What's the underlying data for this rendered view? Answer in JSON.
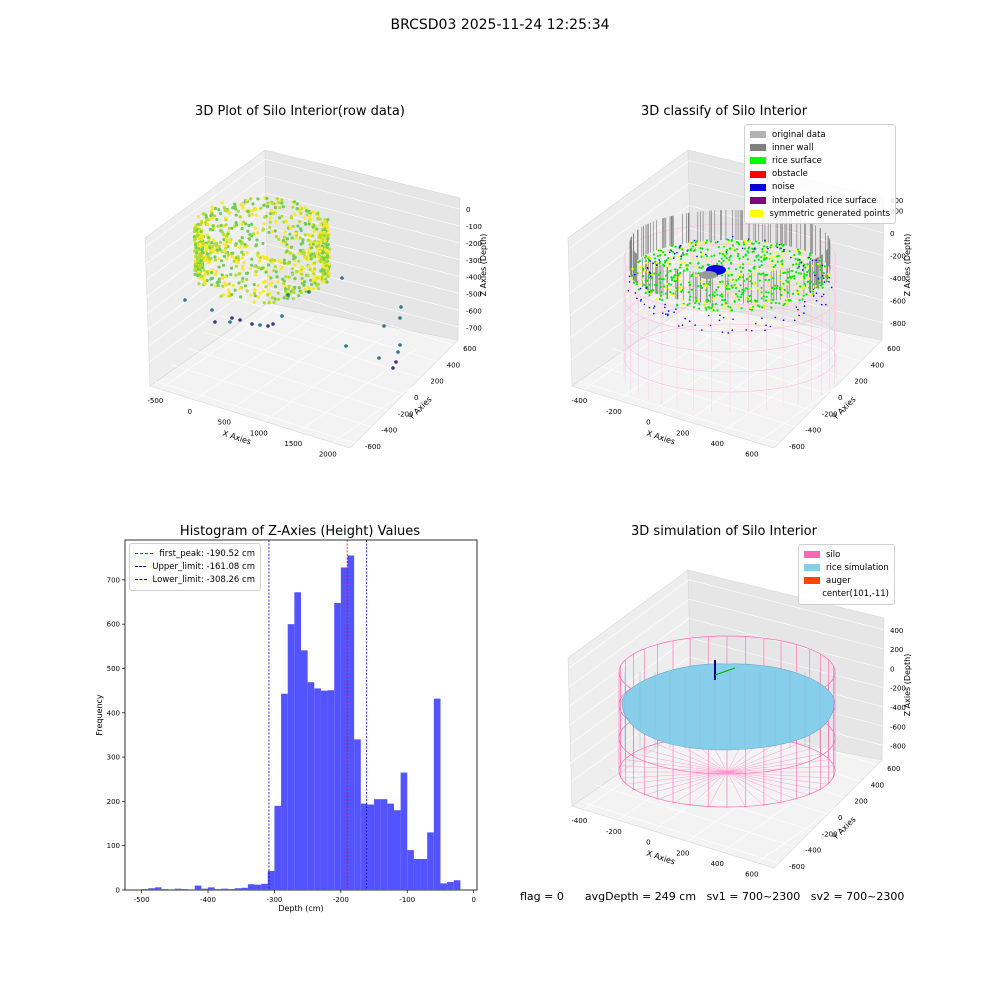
{
  "suptitle": "BRCSD03 2025-11-24 12:25:34",
  "plots": {
    "raw": {
      "title": "3D Plot of Silo Interior(row data)",
      "xlabel": "X Axies",
      "ylabel": "Y Axies",
      "zlabel": "Z Axies (Depth)",
      "xticks": [
        "-500",
        "0",
        "500",
        "1000",
        "1500",
        "2000"
      ],
      "yticks": [
        "-600",
        "-400",
        "-200",
        "0",
        "200",
        "400",
        "600"
      ],
      "zticks": [
        "0",
        "-100",
        "-200",
        "-300",
        "-400",
        "-500",
        "-600",
        "-700"
      ]
    },
    "classify": {
      "title": "3D classify of Silo Interior",
      "xlabel": "X Axies",
      "ylabel": "Y Axies",
      "zlabel": "Z Axies (Depth)",
      "xticks": [
        "-400",
        "-200",
        "0",
        "200",
        "400",
        "600"
      ],
      "yticks": [
        "-600",
        "-400",
        "-200",
        "0",
        "200",
        "400",
        "600"
      ],
      "zticks": [
        "200",
        "0",
        "-200",
        "-400",
        "-600",
        "-800"
      ],
      "ztop": "400",
      "legend": [
        {
          "label": "original data",
          "color": "#b3b3b3"
        },
        {
          "label": "inner wall",
          "color": "#808080"
        },
        {
          "label": "rice surface",
          "color": "#00ff00"
        },
        {
          "label": "obstacle",
          "color": "#ff0000"
        },
        {
          "label": "noise",
          "color": "#0000dd"
        },
        {
          "label": "interpolated rice surface",
          "color": "#800080"
        },
        {
          "label": "symmetric generated points",
          "color": "#ffff00"
        }
      ]
    },
    "simulation": {
      "title": "3D simulation of Silo Interior",
      "xlabel": "X Axies",
      "ylabel": "Y Axies",
      "zlabel": "Z Axies (Depth)",
      "xticks": [
        "-400",
        "-200",
        "0",
        "200",
        "400",
        "600"
      ],
      "yticks": [
        "-600",
        "-400",
        "-200",
        "0",
        "200",
        "400",
        "600"
      ],
      "zticks": [
        "400",
        "200",
        "0",
        "-200",
        "-400",
        "-600",
        "-800"
      ],
      "legend": [
        {
          "label": "silo",
          "color": "#ff69b4"
        },
        {
          "label": "rice simulation",
          "color": "#87ceeb"
        },
        {
          "label": "auger",
          "color": "#ff4500"
        },
        {
          "label": "center(101,-11)",
          "color": ""
        }
      ]
    }
  },
  "chart_data": {
    "type": "bar",
    "title": "Histogram of Z-Axies (Height) Values",
    "xlabel": "Depth (cm)",
    "ylabel": "Frequency",
    "xlim": [
      -525,
      5
    ],
    "ylim": [
      0,
      790
    ],
    "bin_width": 10,
    "bin_left_edges": [
      -500,
      -490,
      -480,
      -470,
      -460,
      -450,
      -440,
      -430,
      -420,
      -410,
      -400,
      -390,
      -380,
      -370,
      -360,
      -350,
      -340,
      -330,
      -320,
      -310,
      -300,
      -290,
      -280,
      -270,
      -260,
      -250,
      -240,
      -230,
      -220,
      -210,
      -200,
      -190,
      -180,
      -170,
      -160,
      -150,
      -140,
      -130,
      -120,
      -110,
      -100,
      -90,
      -80,
      -70,
      -60,
      -50,
      -40,
      -30,
      -20
    ],
    "values": [
      2,
      4,
      6,
      2,
      0,
      3,
      2,
      0,
      10,
      3,
      6,
      2,
      3,
      2,
      4,
      5,
      13,
      12,
      14,
      43,
      190,
      443,
      600,
      672,
      541,
      469,
      455,
      450,
      451,
      648,
      728,
      755,
      340,
      195,
      193,
      205,
      205,
      195,
      180,
      265,
      90,
      70,
      70,
      130,
      432,
      15,
      18,
      22,
      0
    ],
    "xticks": [
      -500,
      -400,
      -300,
      -200,
      -100,
      0
    ],
    "yticks": [
      0,
      100,
      200,
      300,
      400,
      500,
      600,
      700
    ],
    "vlines": [
      {
        "label": "first_peak: -190.52 cm",
        "x": -190.52,
        "color": "#ff0000"
      },
      {
        "label": "Upper_limit: -161.08 cm",
        "x": -161.08,
        "color": "#0000aa"
      },
      {
        "label": "Lower_limit: -308.26 cm",
        "x": -308.26,
        "color": "#0000aa"
      }
    ],
    "bar_color": "#4d4dff",
    "legend_position": "upper left"
  },
  "footer": {
    "flag": "flag = 0",
    "avg": "avgDepth = 249 cm",
    "sv1": "sv1 = 700~2300",
    "sv2": "sv2 = 700~2300"
  }
}
